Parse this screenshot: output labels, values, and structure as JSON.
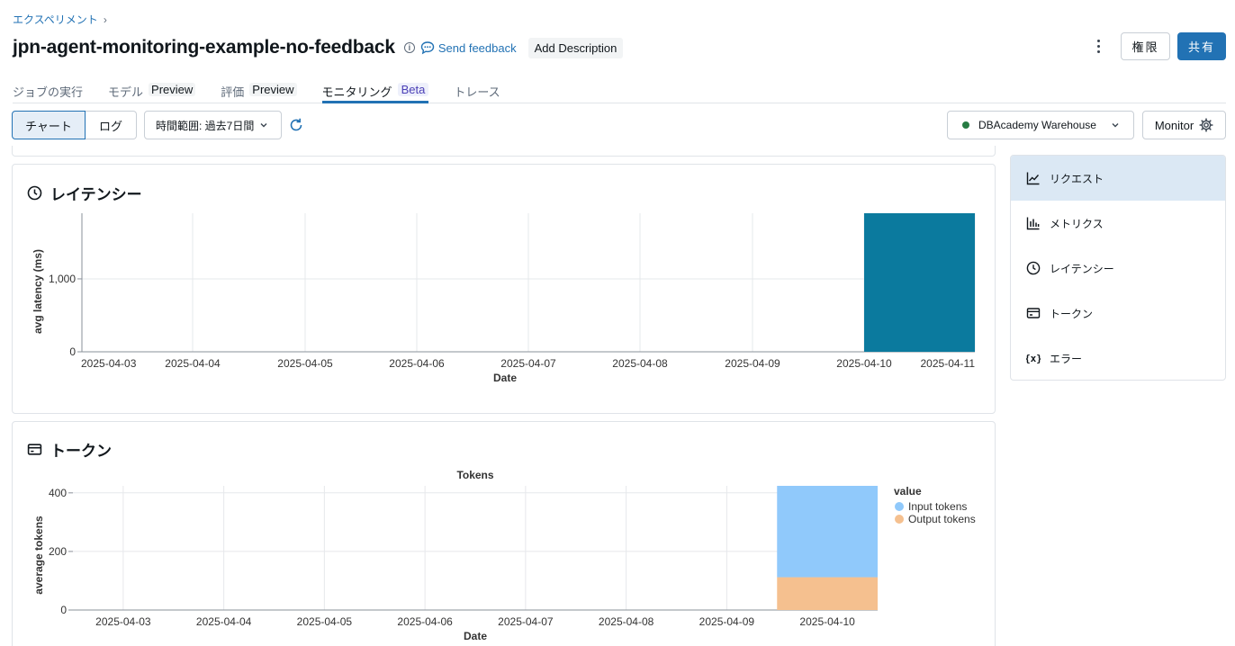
{
  "breadcrumb": {
    "label": "エクスペリメント"
  },
  "header": {
    "title": "jpn-agent-monitoring-example-no-feedback",
    "feedback_label": "Send feedback",
    "add_description_label": "Add Description",
    "permissions_label": "権限",
    "share_label": "共有"
  },
  "tabs": [
    {
      "label": "ジョブの実行",
      "badge": ""
    },
    {
      "label": "モデル",
      "badge": "Preview"
    },
    {
      "label": "評価",
      "badge": "Preview"
    },
    {
      "label": "モニタリング",
      "badge": "Beta"
    },
    {
      "label": "トレース",
      "badge": ""
    }
  ],
  "toolbar": {
    "chart_label": "チャート",
    "log_label": "ログ",
    "time_range_label": "時間範囲: 過去7日間",
    "warehouse_label": "DBAcademy Warehouse",
    "monitor_label": "Monitor"
  },
  "colors": {
    "accent": "#2272b4",
    "latency_bar": "#0b7a9e",
    "input_tokens": "#90c9fb",
    "output_tokens": "#f5c08f",
    "warehouse_status": "#277c43"
  },
  "sidebar": {
    "items": [
      {
        "label": "リクエスト",
        "icon": "line-chart-icon"
      },
      {
        "label": "メトリクス",
        "icon": "bar-chart-icon"
      },
      {
        "label": "レイテンシー",
        "icon": "clock-icon"
      },
      {
        "label": "トークン",
        "icon": "card-icon"
      },
      {
        "label": "エラー",
        "icon": "variable-icon"
      }
    ]
  },
  "panels": {
    "latency_title": "レイテンシー",
    "tokens_title": "トークン"
  },
  "chart_data": [
    {
      "type": "bar",
      "title": "",
      "xlabel": "Date",
      "ylabel": "avg latency (ms)",
      "categories": [
        "2025-04-03",
        "2025-04-04",
        "2025-04-05",
        "2025-04-06",
        "2025-04-07",
        "2025-04-08",
        "2025-04-09",
        "2025-04-10",
        "2025-04-11"
      ],
      "bar": {
        "x": "2025-04-10",
        "value": 1900
      },
      "yticks": [
        "0",
        "1,000"
      ],
      "ylim": [
        0,
        1900
      ],
      "grid": true
    },
    {
      "type": "bar",
      "title": "Tokens",
      "xlabel": "Date",
      "ylabel": "average tokens",
      "categories": [
        "2025-04-03",
        "2025-04-04",
        "2025-04-05",
        "2025-04-06",
        "2025-04-07",
        "2025-04-08",
        "2025-04-09",
        "2025-04-10"
      ],
      "legend_title": "value",
      "legend_position": "right",
      "series": [
        {
          "name": "Input tokens",
          "values": [
            0,
            0,
            0,
            0,
            0,
            0,
            0,
            312
          ]
        },
        {
          "name": "Output tokens",
          "values": [
            0,
            0,
            0,
            0,
            0,
            0,
            0,
            112
          ]
        }
      ],
      "yticks": [
        "0",
        "200",
        "400"
      ],
      "ylim": [
        0,
        424
      ],
      "grid": true
    }
  ]
}
